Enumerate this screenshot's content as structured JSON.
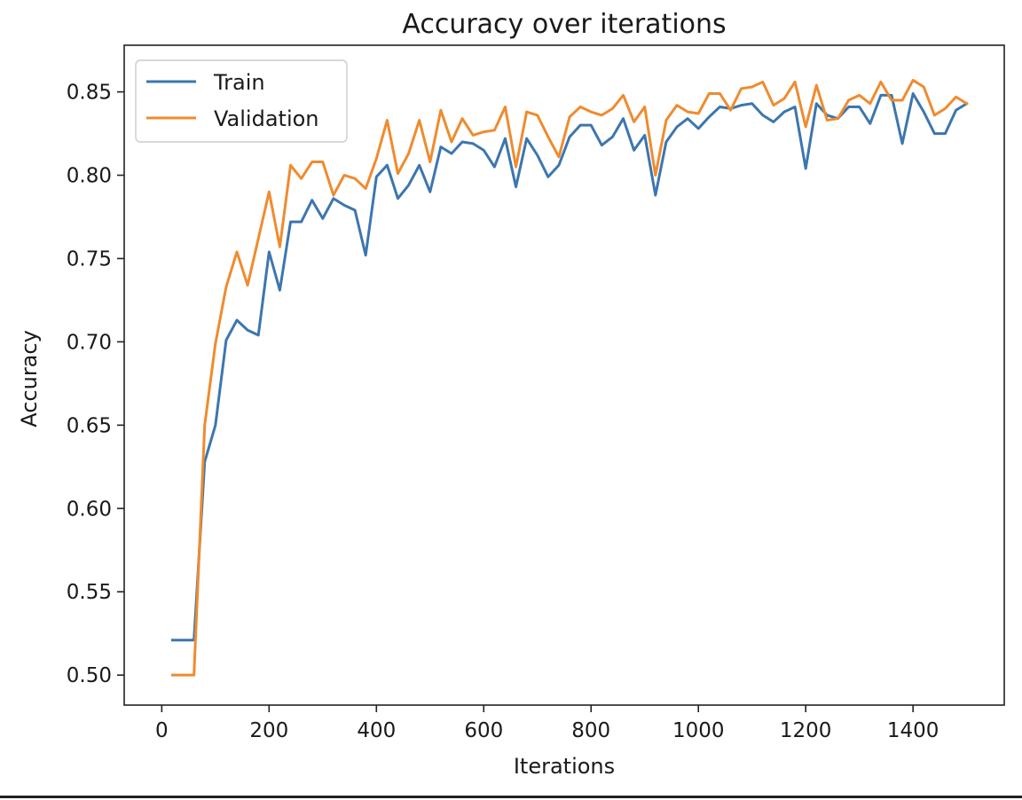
{
  "chart_data": {
    "type": "line",
    "title": "Accuracy over iterations",
    "xlabel": "Iterations",
    "ylabel": "Accuracy",
    "xlim": [
      -70,
      1570
    ],
    "ylim": [
      0.482,
      0.878
    ],
    "xticks": [
      0,
      200,
      400,
      600,
      800,
      1000,
      1200,
      1400
    ],
    "xtick_labels": [
      "0",
      "200",
      "400",
      "600",
      "800",
      "1000",
      "1200",
      "1400"
    ],
    "yticks": [
      0.5,
      0.55,
      0.6,
      0.65,
      0.7,
      0.75,
      0.8,
      0.85
    ],
    "ytick_labels": [
      "0.50",
      "0.55",
      "0.60",
      "0.65",
      "0.70",
      "0.75",
      "0.80",
      "0.85"
    ],
    "grid": false,
    "legend_position": "upper-left",
    "x": [
      20,
      40,
      60,
      80,
      100,
      120,
      140,
      160,
      180,
      200,
      220,
      240,
      260,
      280,
      300,
      320,
      340,
      360,
      380,
      400,
      420,
      440,
      460,
      480,
      500,
      520,
      540,
      560,
      580,
      600,
      620,
      640,
      660,
      680,
      700,
      720,
      740,
      760,
      780,
      800,
      820,
      840,
      860,
      880,
      900,
      920,
      940,
      960,
      980,
      1000,
      1020,
      1040,
      1060,
      1080,
      1100,
      1120,
      1140,
      1160,
      1180,
      1200,
      1220,
      1240,
      1260,
      1280,
      1300,
      1320,
      1340,
      1360,
      1380,
      1400,
      1420,
      1440,
      1460,
      1480,
      1500
    ],
    "series": [
      {
        "name": "Train",
        "color": "#3c76af",
        "values": [
          0.521,
          0.521,
          0.521,
          0.628,
          0.65,
          0.701,
          0.713,
          0.707,
          0.704,
          0.754,
          0.731,
          0.772,
          0.772,
          0.785,
          0.774,
          0.786,
          0.782,
          0.779,
          0.752,
          0.799,
          0.806,
          0.786,
          0.794,
          0.806,
          0.79,
          0.817,
          0.813,
          0.82,
          0.819,
          0.815,
          0.805,
          0.822,
          0.793,
          0.822,
          0.812,
          0.799,
          0.806,
          0.823,
          0.83,
          0.83,
          0.818,
          0.823,
          0.834,
          0.815,
          0.824,
          0.788,
          0.82,
          0.829,
          0.834,
          0.828,
          0.835,
          0.841,
          0.84,
          0.842,
          0.843,
          0.836,
          0.832,
          0.838,
          0.841,
          0.804,
          0.843,
          0.836,
          0.834,
          0.841,
          0.841,
          0.831,
          0.848,
          0.848,
          0.819,
          0.849,
          0.838,
          0.825,
          0.825,
          0.839,
          0.843
        ]
      },
      {
        "name": "Validation",
        "color": "#ef8b2f",
        "values": [
          0.5,
          0.5,
          0.5,
          0.65,
          0.699,
          0.733,
          0.754,
          0.734,
          0.762,
          0.79,
          0.757,
          0.806,
          0.798,
          0.808,
          0.808,
          0.788,
          0.8,
          0.798,
          0.792,
          0.81,
          0.833,
          0.801,
          0.813,
          0.833,
          0.808,
          0.839,
          0.82,
          0.834,
          0.824,
          0.826,
          0.827,
          0.841,
          0.805,
          0.838,
          0.836,
          0.823,
          0.811,
          0.835,
          0.841,
          0.838,
          0.836,
          0.84,
          0.848,
          0.832,
          0.841,
          0.8,
          0.833,
          0.842,
          0.838,
          0.837,
          0.849,
          0.849,
          0.839,
          0.852,
          0.853,
          0.856,
          0.842,
          0.846,
          0.856,
          0.829,
          0.854,
          0.833,
          0.834,
          0.845,
          0.848,
          0.843,
          0.856,
          0.845,
          0.845,
          0.857,
          0.853,
          0.836,
          0.84,
          0.847,
          0.843
        ]
      }
    ]
  }
}
